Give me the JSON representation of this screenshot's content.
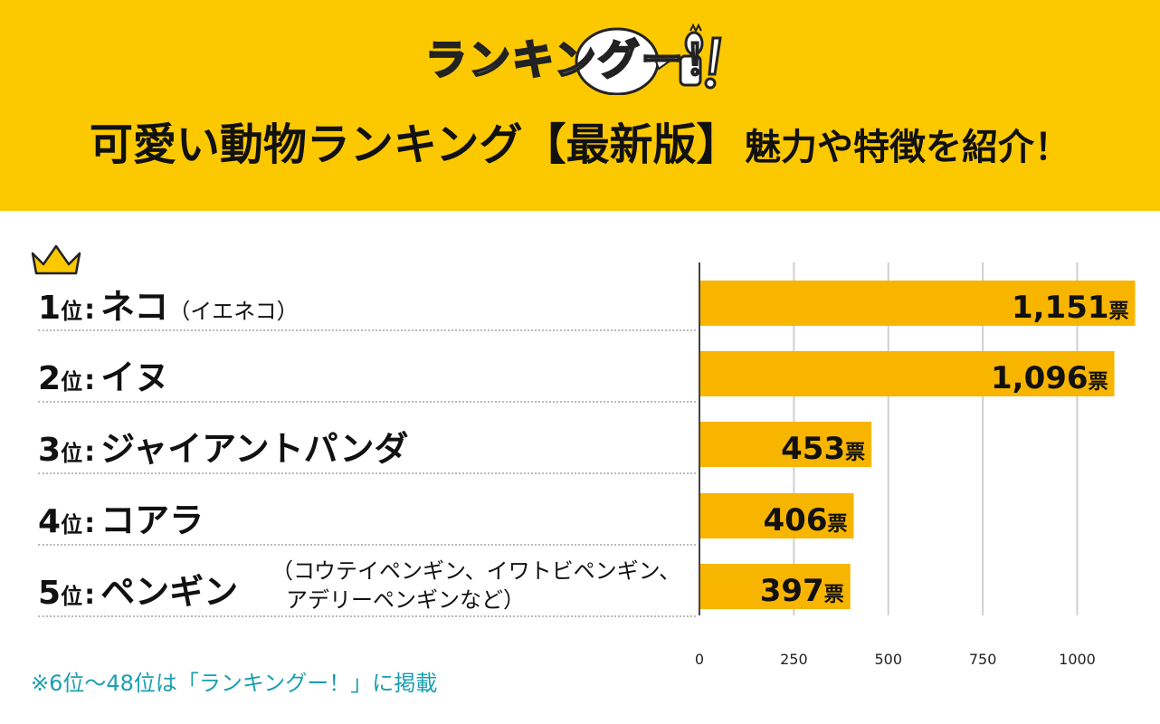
{
  "header": {
    "logo_text": "ランキングー！",
    "title_main": "可愛い動物ランキング【最新版】",
    "title_sub": "魅力や特徴を紹介！"
  },
  "rows": [
    {
      "rank": "1",
      "suffix": "位",
      "colon": ":",
      "name": "ネコ",
      "note": "（イエネコ）"
    },
    {
      "rank": "2",
      "suffix": "位",
      "colon": ":",
      "name": "イヌ",
      "note": ""
    },
    {
      "rank": "3",
      "suffix": "位",
      "colon": ":",
      "name": "ジャイアントパンダ",
      "note": ""
    },
    {
      "rank": "4",
      "suffix": "位",
      "colon": ":",
      "name": "コアラ",
      "note": ""
    },
    {
      "rank": "5",
      "suffix": "位",
      "colon": ":",
      "name": "ペンギン",
      "note": "（コウテイペンギン、イワトビペンギン、",
      "note_line2": "アデリーペンギンなど）"
    }
  ],
  "footer": "※6位〜48位は「ランキングー！」に掲載",
  "colors": {
    "header_bg": "#fcc800",
    "bar": "#f8b500",
    "footer_text": "#1a9fb0",
    "crown": "#fcc800"
  },
  "icons": [
    "crown-icon",
    "thumbs-up-bird-icon"
  ],
  "chart_data": {
    "type": "bar",
    "orientation": "horizontal",
    "categories": [
      "ネコ",
      "イヌ",
      "ジャイアントパンダ",
      "コアラ",
      "ペンギン"
    ],
    "values": [
      1151,
      1096,
      453,
      406,
      397
    ],
    "value_labels": [
      "1,151",
      "1,096",
      "453",
      "406",
      "397"
    ],
    "unit": "票",
    "xlim": [
      0,
      1150
    ],
    "x_ticks": [
      0,
      250,
      500,
      750,
      1000
    ],
    "grid": true
  }
}
